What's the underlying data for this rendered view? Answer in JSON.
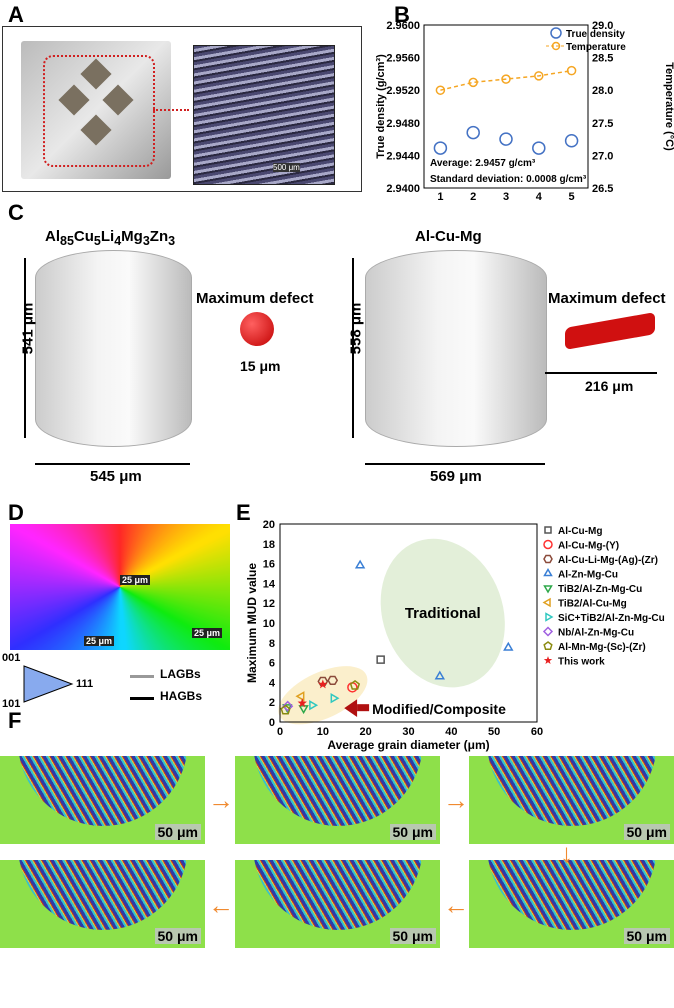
{
  "panels": {
    "a": "A",
    "b": "B",
    "c": "C",
    "d": "D",
    "e": "E",
    "f": "F"
  },
  "panel_a": {
    "scale_labels": [
      "500 μm",
      "500 μm",
      "500 μm"
    ]
  },
  "panel_c": {
    "left": {
      "title_base": "Al",
      "title": [
        "85",
        "Cu",
        "5",
        "Li",
        "4",
        "Mg",
        "3",
        "Zn",
        "3"
      ],
      "height": "541 μm",
      "width": "545 μm",
      "defect_label": "Maximum defect",
      "defect_size": "15 μm"
    },
    "right": {
      "title": "Al-Cu-Mg",
      "height": "558 μm",
      "width": "569 μm",
      "defect_label": "Maximum defect",
      "defect_size": "216 μm"
    }
  },
  "panel_d": {
    "scale_labels": [
      "25 μm",
      "25 μm",
      "25 μm"
    ],
    "ipf": {
      "top": "001",
      "right": "111",
      "left": "101"
    },
    "legend": [
      "LAGBs",
      "HAGBs"
    ]
  },
  "panel_f": {
    "scale": "50 μm"
  },
  "chart_data": [
    {
      "type": "scatter",
      "panel": "B",
      "xlabel": "Cycle number",
      "ylabel": "True density (g/cm³)",
      "y2label": "Temperature (°C)",
      "x": [
        1,
        2,
        3,
        4,
        5
      ],
      "xlim": [
        0.5,
        5.5
      ],
      "ylim": [
        2.94,
        2.96
      ],
      "y2lim": [
        26.5,
        29.0
      ],
      "yticks": [
        "2.9400",
        "2.9440",
        "2.9480",
        "2.9520",
        "2.9560",
        "2.9600"
      ],
      "y2ticks": [
        "26.5",
        "27.0",
        "27.5",
        "28.0",
        "28.5",
        "29.0"
      ],
      "xticks": [
        "1",
        "2",
        "3",
        "4",
        "5"
      ],
      "series": [
        {
          "name": "True density",
          "axis": "left",
          "values": [
            2.9449,
            2.9468,
            2.946,
            2.9449,
            2.9458
          ],
          "color": "#4472c4",
          "marker": "circle"
        },
        {
          "name": "Temperature",
          "axis": "right",
          "values": [
            28.0,
            28.12,
            28.17,
            28.22,
            28.3
          ],
          "color": "#f5a623",
          "marker": "circle",
          "line": "dashed"
        }
      ],
      "annotations": [
        "Average: 2.9457 g/cm³",
        "Standard deviation: 0.0008 g/cm³"
      ],
      "legend": "top-right"
    },
    {
      "type": "scatter",
      "panel": "E",
      "xlabel": "Average grain diameter (μm)",
      "ylabel": "Maximum MUD value",
      "xlim": [
        0,
        60
      ],
      "ylim": [
        0,
        20
      ],
      "xticks": [
        "0",
        "10",
        "20",
        "30",
        "40",
        "50",
        "60"
      ],
      "yticks": [
        "0",
        "2",
        "4",
        "6",
        "8",
        "10",
        "12",
        "14",
        "16",
        "18",
        "20"
      ],
      "regions": [
        {
          "label": "Traditional",
          "color": "#e3efd9"
        },
        {
          "label": "Modified/Composite",
          "color": "#fbefcc"
        }
      ],
      "series": [
        {
          "name": "Al-Cu-Mg",
          "marker": "square",
          "color": "#555555",
          "points": [
            [
              23.5,
              6.3
            ]
          ]
        },
        {
          "name": "Al-Cu-Mg-(Y)",
          "marker": "circle",
          "color": "#ff3030",
          "points": [
            [
              16.9,
              3.5
            ]
          ]
        },
        {
          "name": "Al-Cu-Li-Mg-(Ag)-(Zr)",
          "marker": "hexagon",
          "color": "#8b4a3a",
          "points": [
            [
              10,
              4.1
            ],
            [
              12.3,
              4.2
            ]
          ]
        },
        {
          "name": "Al-Zn-Mg-Cu",
          "marker": "triangle-up",
          "color": "#3a7fd5",
          "points": [
            [
              18.7,
              15.8
            ],
            [
              37.3,
              4.6
            ],
            [
              53.3,
              7.5
            ]
          ]
        },
        {
          "name": "TiB2/Al-Zn-Mg-Cu",
          "marker": "triangle-down",
          "color": "#2ea84a",
          "points": [
            [
              5.5,
              1.4
            ],
            [
              1.7,
              1.5
            ]
          ]
        },
        {
          "name": "TiB2/Al-Cu-Mg",
          "marker": "triangle-left",
          "color": "#e0a020",
          "points": [
            [
              5,
              2.6
            ]
          ]
        },
        {
          "name": "SiC+TiB2/Al-Zn-Mg-Cu",
          "marker": "triangle-right",
          "color": "#30c8c0",
          "points": [
            [
              7.5,
              1.7
            ],
            [
              12.5,
              2.4
            ]
          ]
        },
        {
          "name": "Nb/Al-Zn-Mg-Cu",
          "marker": "diamond",
          "color": "#a060e0",
          "points": [
            [
              1.8,
              1.6
            ]
          ]
        },
        {
          "name": "Al-Mn-Mg-(Sc)-(Zr)",
          "marker": "pentagon",
          "color": "#8a8a10",
          "points": [
            [
              1.3,
              1.2
            ],
            [
              17.5,
              3.7
            ]
          ]
        },
        {
          "name": "This work",
          "marker": "star",
          "color": "#e82020",
          "points": [
            [
              5.2,
              1.9
            ],
            [
              10,
              3.8
            ]
          ]
        }
      ],
      "legend": "right"
    }
  ]
}
